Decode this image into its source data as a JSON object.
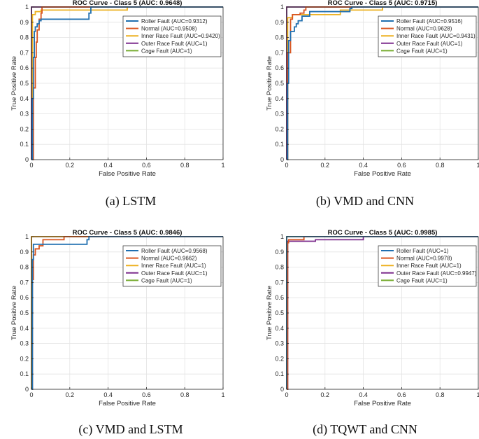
{
  "colors": {
    "roller": "#1f6fb0",
    "normal": "#d9541e",
    "inner": "#edb120",
    "outer": "#7e2f8e",
    "cage": "#77ac30",
    "grid": "#e3e3e3",
    "axis": "#262626"
  },
  "chart_data": [
    {
      "type": "line",
      "caption": "(a)  LSTM",
      "title": "ROC Curve - Class 5 (AUC: 0.9648)",
      "xlabel": "False Positive Rate",
      "ylabel": "True Positive Rate",
      "xlim": [
        0,
        1
      ],
      "ylim": [
        0,
        1
      ],
      "xticks": [
        0,
        0.2,
        0.4,
        0.6,
        0.8,
        1
      ],
      "xtick_labels": [
        "0",
        "0.2",
        "0.4",
        "0.6",
        "0.8",
        "1"
      ],
      "yticks": [
        0,
        0.1,
        0.2,
        0.3,
        0.4,
        0.5,
        0.6,
        0.7,
        0.8,
        0.9,
        1
      ],
      "ytick_labels": [
        "0",
        "0.1",
        "0.2",
        "0.3",
        "0.4",
        "0.5",
        "0.6",
        "0.7",
        "0.8",
        "0.9",
        "1"
      ],
      "grid": true,
      "legend_position": "top-right",
      "series": [
        {
          "name": "Roller Fault (AUC=0.9312)",
          "color_key": "roller",
          "x": [
            0,
            0.005,
            0.005,
            0.01,
            0.01,
            0.015,
            0.015,
            0.02,
            0.02,
            0.03,
            0.03,
            0.04,
            0.04,
            0.05,
            0.05,
            0.3,
            0.3,
            0.31,
            0.31,
            1
          ],
          "y": [
            0,
            0,
            0.4,
            0.4,
            0.67,
            0.67,
            0.84,
            0.84,
            0.87,
            0.87,
            0.89,
            0.89,
            0.91,
            0.91,
            0.92,
            0.92,
            0.96,
            0.96,
            1,
            1
          ]
        },
        {
          "name": "Normal (AUC=0.9508)",
          "color_key": "normal",
          "x": [
            0,
            0.01,
            0.01,
            0.02,
            0.02,
            0.025,
            0.025,
            0.03,
            0.03,
            0.04,
            0.04,
            0.05,
            0.05,
            0.055,
            0.055,
            1
          ],
          "y": [
            0,
            0,
            0.47,
            0.47,
            0.67,
            0.67,
            0.77,
            0.77,
            0.85,
            0.85,
            0.92,
            0.92,
            0.96,
            0.96,
            1,
            1
          ]
        },
        {
          "name": "Inner Race Fault (AUC=0.9420)",
          "color_key": "inner",
          "x": [
            0,
            0.005,
            0.005,
            0.02,
            0.02,
            0.05,
            0.05,
            0.5,
            0.5,
            1
          ],
          "y": [
            0,
            0,
            0.95,
            0.95,
            0.97,
            0.97,
            0.98,
            0.98,
            1,
            1
          ]
        },
        {
          "name": "Outer Race Fault (AUC=1)",
          "color_key": "outer",
          "x": [
            0,
            0,
            1
          ],
          "y": [
            0,
            1,
            1
          ]
        },
        {
          "name": "Cage Fault (AUC=1)",
          "color_key": "cage",
          "x": [
            0,
            0,
            1
          ],
          "y": [
            0,
            1,
            1
          ]
        }
      ]
    },
    {
      "type": "line",
      "caption": "(b)  VMD and CNN",
      "title": "ROC Curve - Class 5 (AUC: 0.9715)",
      "xlabel": "False Positive Rate",
      "ylabel": "True Positive Rate",
      "xlim": [
        0,
        1
      ],
      "ylim": [
        0,
        1
      ],
      "xticks": [
        0,
        0.2,
        0.4,
        0.6,
        0.8,
        1
      ],
      "xtick_labels": [
        "0",
        "0.2",
        "0.4",
        "0.6",
        "0.8",
        "1"
      ],
      "yticks": [
        0,
        0.1,
        0.2,
        0.3,
        0.4,
        0.5,
        0.6,
        0.7,
        0.8,
        0.9,
        1
      ],
      "ytick_labels": [
        "0",
        "0.1",
        "0.2",
        "0.3",
        "0.4",
        "0.5",
        "0.6",
        "0.7",
        "0.8",
        "0.9",
        "1"
      ],
      "grid": true,
      "legend_position": "top-right",
      "series": [
        {
          "name": "Roller Fault (AUC=0.9516)",
          "color_key": "roller",
          "x": [
            0,
            0.005,
            0.005,
            0.01,
            0.01,
            0.02,
            0.02,
            0.04,
            0.04,
            0.05,
            0.05,
            0.06,
            0.06,
            0.08,
            0.08,
            0.12,
            0.12,
            0.33,
            0.33,
            0.34,
            0.34,
            1
          ],
          "y": [
            0,
            0,
            0.5,
            0.5,
            0.78,
            0.78,
            0.84,
            0.84,
            0.87,
            0.87,
            0.89,
            0.89,
            0.91,
            0.91,
            0.94,
            0.94,
            0.97,
            0.97,
            0.99,
            0.99,
            1,
            1
          ]
        },
        {
          "name": "Normal (AUC=0.9628)",
          "color_key": "normal",
          "x": [
            0,
            0.005,
            0.005,
            0.02,
            0.02,
            0.03,
            0.03,
            0.07,
            0.07,
            0.09,
            0.09,
            0.1,
            0.1,
            1
          ],
          "y": [
            0,
            0,
            0.7,
            0.7,
            0.92,
            0.92,
            0.95,
            0.95,
            0.96,
            0.96,
            0.98,
            0.98,
            1,
            1
          ]
        },
        {
          "name": "Inner Race Fault (AUC=0.9431)",
          "color_key": "inner",
          "x": [
            0,
            0.005,
            0.005,
            0.03,
            0.03,
            0.28,
            0.28,
            0.5,
            0.5,
            1
          ],
          "y": [
            0,
            0,
            0.93,
            0.93,
            0.95,
            0.95,
            0.98,
            0.98,
            1,
            1
          ]
        },
        {
          "name": "Outer Race Fault (AUC=1)",
          "color_key": "outer",
          "x": [
            0,
            0,
            1
          ],
          "y": [
            0,
            1,
            1
          ]
        },
        {
          "name": "Cage Fault (AUC=1)",
          "color_key": "cage",
          "x": [
            0,
            0,
            1
          ],
          "y": [
            0,
            1,
            1
          ]
        }
      ]
    },
    {
      "type": "line",
      "caption": "(c) VMD and LSTM",
      "title": "ROC Curve - Class 5 (AUC: 0.9846)",
      "xlabel": "False Positive Rate",
      "ylabel": "True Positive Rate",
      "xlim": [
        0,
        1
      ],
      "ylim": [
        0,
        1
      ],
      "xticks": [
        0,
        0.2,
        0.4,
        0.6,
        0.8,
        1
      ],
      "xtick_labels": [
        "0",
        "0.2",
        "0.4",
        "0.6",
        "0.8",
        "1"
      ],
      "yticks": [
        0,
        0.1,
        0.2,
        0.3,
        0.4,
        0.5,
        0.6,
        0.7,
        0.8,
        0.9,
        1
      ],
      "ytick_labels": [
        "0",
        "0.1",
        "0.2",
        "0.3",
        "0.4",
        "0.5",
        "0.6",
        "0.7",
        "0.8",
        "0.9",
        "1"
      ],
      "grid": true,
      "legend_position": "top-right",
      "series": [
        {
          "name": "Roller Fault (AUC=0.9568)",
          "color_key": "roller",
          "x": [
            0,
            0.005,
            0.005,
            0.01,
            0.01,
            0.29,
            0.29,
            0.3,
            0.3,
            1
          ],
          "y": [
            0,
            0,
            0.85,
            0.85,
            0.95,
            0.95,
            0.98,
            0.98,
            1,
            1
          ]
        },
        {
          "name": "Normal (AUC=0.9662)",
          "color_key": "normal",
          "x": [
            0,
            0.005,
            0.005,
            0.01,
            0.01,
            0.02,
            0.02,
            0.04,
            0.04,
            0.06,
            0.06,
            0.17,
            0.17,
            1
          ],
          "y": [
            0,
            0,
            0.72,
            0.72,
            0.88,
            0.88,
            0.92,
            0.92,
            0.94,
            0.94,
            0.98,
            0.98,
            1,
            1
          ]
        },
        {
          "name": "Inner Race Fault (AUC=1)",
          "color_key": "inner",
          "x": [
            0,
            0,
            1
          ],
          "y": [
            0,
            1,
            1
          ]
        },
        {
          "name": "Outer Race Fault (AUC=1)",
          "color_key": "outer",
          "x": [
            0,
            0,
            1
          ],
          "y": [
            0,
            1,
            1
          ]
        },
        {
          "name": "Cage Fault (AUC=1)",
          "color_key": "cage",
          "x": [
            0,
            0,
            1
          ],
          "y": [
            0,
            1,
            1
          ]
        }
      ]
    },
    {
      "type": "line",
      "caption": "(d) TQWT and CNN",
      "title": "ROC Curve - Class 5 (AUC: 0.9985)",
      "xlabel": "False Positive Rate",
      "ylabel": "True Positive Rate",
      "xlim": [
        0,
        1
      ],
      "ylim": [
        0,
        1
      ],
      "xticks": [
        0,
        0.2,
        0.4,
        0.6,
        0.8,
        1
      ],
      "xtick_labels": [
        "0",
        "0.2",
        "0.4",
        "0.6",
        "0.8",
        "1"
      ],
      "yticks": [
        0,
        0.1,
        0.2,
        0.3,
        0.4,
        0.5,
        0.6,
        0.7,
        0.8,
        0.9,
        1
      ],
      "ytick_labels": [
        "0",
        "0.1",
        "0.2",
        "0.3",
        "0.4",
        "0.5",
        "0.6",
        "0.7",
        "0.8",
        "0.9",
        "1"
      ],
      "grid": true,
      "legend_position": "top-right",
      "series": [
        {
          "name": "Roller Fault (AUC=1)",
          "color_key": "roller",
          "x": [
            0,
            0,
            1
          ],
          "y": [
            0,
            1,
            1
          ]
        },
        {
          "name": "Normal (AUC=0.9978)",
          "color_key": "normal",
          "x": [
            0,
            0.005,
            0.005,
            0.01,
            0.01,
            0.09,
            0.09,
            1
          ],
          "y": [
            0,
            0,
            0.96,
            0.96,
            0.98,
            0.98,
            1,
            1
          ]
        },
        {
          "name": "Inner Race Fault (AUC=1)",
          "color_key": "inner",
          "x": [
            0,
            0,
            1
          ],
          "y": [
            0,
            1,
            1
          ]
        },
        {
          "name": "Outer Race Fault (AUC=0.9947)",
          "color_key": "outer",
          "x": [
            0,
            0.005,
            0.005,
            0.15,
            0.15,
            0.4,
            0.4,
            1
          ],
          "y": [
            0,
            0,
            0.97,
            0.97,
            0.98,
            0.98,
            1,
            1
          ]
        },
        {
          "name": "Cage Fault (AUC=1)",
          "color_key": "cage",
          "x": [
            0,
            0,
            1
          ],
          "y": [
            0,
            1,
            1
          ]
        }
      ]
    }
  ]
}
